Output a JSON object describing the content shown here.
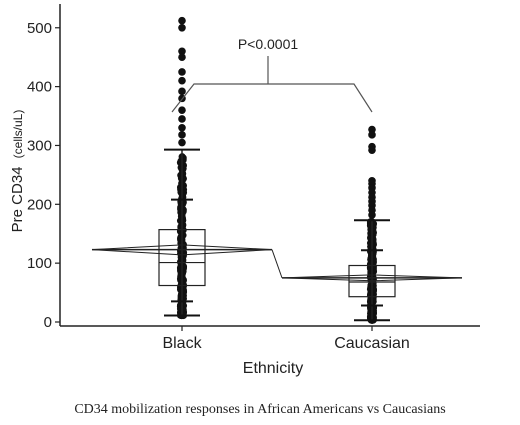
{
  "chart_data": {
    "type": "box-scatter",
    "title": "",
    "xlabel": "Ethnicity",
    "ylabel_main": "Pre CD34",
    "ylabel_unit": "(cells/uL)",
    "ylim": [
      0,
      520
    ],
    "yticks": [
      0,
      100,
      200,
      300,
      400,
      500
    ],
    "categories": [
      "Black",
      "Caucasian"
    ],
    "groups": [
      {
        "category": "Black",
        "mean": 123,
        "box": {
          "q1": 62,
          "median": 101,
          "q3": 157
        },
        "mean_diamond": {
          "low": 114,
          "high": 131
        },
        "whiskers": {
          "low": 11,
          "high": 293
        },
        "quantile_ticks": [
          35,
          208
        ],
        "outliers": [
          512,
          500,
          460,
          450,
          425,
          410,
          392,
          380,
          360,
          345,
          330,
          318,
          305
        ]
      },
      {
        "category": "Caucasian",
        "mean": 75,
        "box": {
          "q1": 43,
          "median": 68,
          "q3": 96
        },
        "mean_diamond": {
          "low": 70,
          "high": 80
        },
        "whiskers": {
          "low": 3,
          "high": 173
        },
        "quantile_ticks": [
          28,
          122
        ],
        "outliers": [
          327,
          318,
          298,
          292,
          240,
          235,
          228,
          220,
          212,
          205,
          198,
          190,
          182
        ]
      }
    ],
    "annotation": {
      "text": "P<0.0001"
    },
    "caption": "CD34 mobilization responses in African Americans vs Caucasians"
  }
}
